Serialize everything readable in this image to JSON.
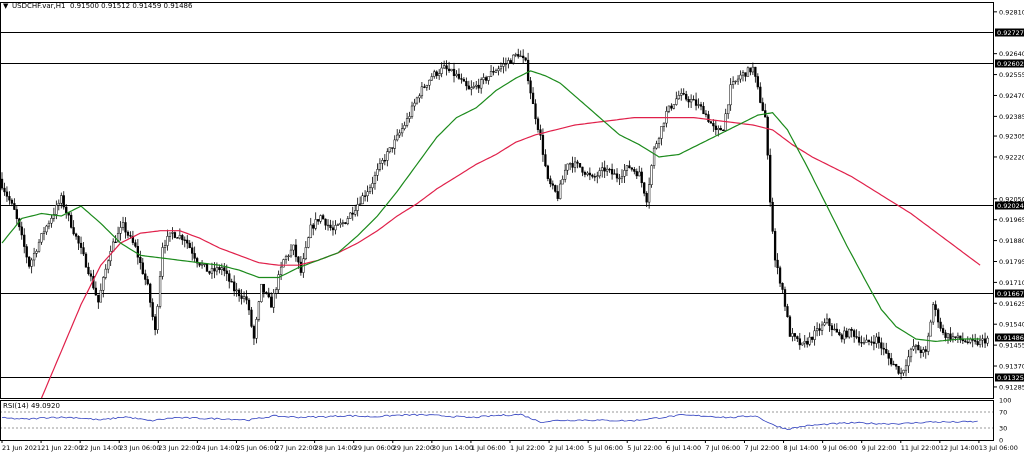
{
  "header": {
    "arrow": "▼",
    "symbol_label": "USDCHF.var,H1",
    "ohlc_label": "0.91500 0.91512 0.91459 0.91486"
  },
  "rsi_label": "RSI(14) 49.0920",
  "colors": {
    "background": "#ffffff",
    "candle": "#000000",
    "ma_fast": "#1b8a1b",
    "ma_slow": "#e0204a",
    "rsi_line": "#2f3fbf",
    "level_tag_bg": "#000000",
    "level_tag_text": "#ffffff"
  },
  "chart_data": [
    {
      "type": "candlestick",
      "title": "USDCHF.var,H1",
      "ylim": [
        0.9124,
        0.9285
      ],
      "y_ticks": [
        "0.92810",
        "0.92640",
        "0.92555",
        "0.92470",
        "0.92385",
        "0.92305",
        "0.92220",
        "0.92050",
        "0.91965",
        "0.91880",
        "0.91795",
        "0.91710",
        "0.91625",
        "0.91540",
        "0.91455",
        "0.91370",
        "0.91285"
      ],
      "x_ticks": [
        "21 Jun 2021",
        "21 Jun 22:00",
        "22 Jun 14:00",
        "23 Jun 06:00",
        "23 Jun 22:00",
        "24 Jun 14:00",
        "25 Jun 06:00",
        "27 Jun 22:00",
        "28 Jun 14:00",
        "29 Jun 06:00",
        "29 Jun 22:00",
        "30 Jun 14:00",
        "1 Jul 06:00",
        "1 Jul 22:00",
        "2 Jul 14:00",
        "5 Jul 06:00",
        "5 Jul 22:00",
        "6 Jul 14:00",
        "7 Jul 06:00",
        "7 Jul 22:00",
        "8 Jul 14:00",
        "9 Jul 06:00",
        "9 Jul 22:00",
        "11 Jul 22:00",
        "12 Jul 14:00",
        "13 Jul 06:00"
      ],
      "horizontal_levels": [
        "0.92727",
        "0.92602",
        "0.92024",
        "0.91667",
        "0.91325"
      ],
      "last_price": "0.91486",
      "price_path": [
        [
          0,
          0.9213
        ],
        [
          6,
          0.92
        ],
        [
          12,
          0.9178
        ],
        [
          18,
          0.9192
        ],
        [
          25,
          0.9205
        ],
        [
          30,
          0.9192
        ],
        [
          36,
          0.9176
        ],
        [
          40,
          0.9163
        ],
        [
          45,
          0.9185
        ],
        [
          50,
          0.9194
        ],
        [
          55,
          0.9185
        ],
        [
          60,
          0.9169
        ],
        [
          63,
          0.9151
        ],
        [
          66,
          0.9186
        ],
        [
          70,
          0.9191
        ],
        [
          75,
          0.9189
        ],
        [
          80,
          0.918
        ],
        [
          85,
          0.9175
        ],
        [
          90,
          0.9177
        ],
        [
          95,
          0.9168
        ],
        [
          100,
          0.9164
        ],
        [
          103,
          0.9148
        ],
        [
          106,
          0.9169
        ],
        [
          110,
          0.9162
        ],
        [
          115,
          0.918
        ],
        [
          119,
          0.9185
        ],
        [
          122,
          0.9175
        ],
        [
          126,
          0.9193
        ],
        [
          130,
          0.9198
        ],
        [
          135,
          0.9192
        ],
        [
          140,
          0.9196
        ],
        [
          145,
          0.9203
        ],
        [
          150,
          0.921
        ],
        [
          155,
          0.922
        ],
        [
          160,
          0.9228
        ],
        [
          165,
          0.9237
        ],
        [
          170,
          0.9248
        ],
        [
          175,
          0.9255
        ],
        [
          180,
          0.9258
        ],
        [
          185,
          0.9255
        ],
        [
          190,
          0.9249
        ],
        [
          195,
          0.9252
        ],
        [
          200,
          0.9257
        ],
        [
          205,
          0.926
        ],
        [
          210,
          0.9264
        ],
        [
          213,
          0.926
        ],
        [
          216,
          0.9243
        ],
        [
          219,
          0.923
        ],
        [
          222,
          0.9212
        ],
        [
          226,
          0.9206
        ],
        [
          230,
          0.922
        ],
        [
          235,
          0.9218
        ],
        [
          240,
          0.9213
        ],
        [
          245,
          0.9217
        ],
        [
          250,
          0.9214
        ],
        [
          255,
          0.9218
        ],
        [
          259,
          0.9215
        ],
        [
          262,
          0.9205
        ],
        [
          265,
          0.9225
        ],
        [
          270,
          0.924
        ],
        [
          275,
          0.9247
        ],
        [
          280,
          0.9245
        ],
        [
          285,
          0.9241
        ],
        [
          290,
          0.9232
        ],
        [
          293,
          0.9234
        ],
        [
          296,
          0.925
        ],
        [
          300,
          0.9255
        ],
        [
          305,
          0.9258
        ],
        [
          308,
          0.9245
        ],
        [
          310,
          0.9238
        ],
        [
          312,
          0.9205
        ],
        [
          314,
          0.918
        ],
        [
          317,
          0.9168
        ],
        [
          320,
          0.915
        ],
        [
          325,
          0.9145
        ],
        [
          330,
          0.915
        ],
        [
          335,
          0.9155
        ],
        [
          340,
          0.9149
        ],
        [
          345,
          0.9151
        ],
        [
          350,
          0.9146
        ],
        [
          355,
          0.9148
        ],
        [
          360,
          0.914
        ],
        [
          365,
          0.9134
        ],
        [
          370,
          0.9145
        ],
        [
          375,
          0.9142
        ],
        [
          378,
          0.9162
        ],
        [
          382,
          0.915
        ],
        [
          388,
          0.9148
        ],
        [
          395,
          0.9146
        ],
        [
          400,
          0.9148
        ]
      ],
      "ma_fast_path": [
        [
          0,
          0.9187
        ],
        [
          8,
          0.9197
        ],
        [
          16,
          0.9199
        ],
        [
          24,
          0.9198
        ],
        [
          32,
          0.9202
        ],
        [
          40,
          0.9195
        ],
        [
          48,
          0.9187
        ],
        [
          56,
          0.9182
        ],
        [
          64,
          0.9181
        ],
        [
          72,
          0.918
        ],
        [
          80,
          0.9179
        ],
        [
          88,
          0.9178
        ],
        [
          96,
          0.9176
        ],
        [
          104,
          0.9173
        ],
        [
          112,
          0.9173
        ],
        [
          120,
          0.9177
        ],
        [
          128,
          0.918
        ],
        [
          136,
          0.9183
        ],
        [
          144,
          0.919
        ],
        [
          152,
          0.9198
        ],
        [
          160,
          0.9208
        ],
        [
          168,
          0.9219
        ],
        [
          176,
          0.923
        ],
        [
          184,
          0.9238
        ],
        [
          192,
          0.9242
        ],
        [
          200,
          0.9249
        ],
        [
          208,
          0.9254
        ],
        [
          214,
          0.9257
        ],
        [
          220,
          0.9255
        ],
        [
          226,
          0.9252
        ],
        [
          234,
          0.9245
        ],
        [
          242,
          0.9238
        ],
        [
          250,
          0.9231
        ],
        [
          258,
          0.9227
        ],
        [
          266,
          0.9222
        ],
        [
          274,
          0.9223
        ],
        [
          282,
          0.9227
        ],
        [
          290,
          0.9231
        ],
        [
          298,
          0.9235
        ],
        [
          306,
          0.9239
        ],
        [
          312,
          0.924
        ],
        [
          318,
          0.9233
        ],
        [
          326,
          0.9218
        ],
        [
          334,
          0.9202
        ],
        [
          342,
          0.9186
        ],
        [
          350,
          0.9171
        ],
        [
          356,
          0.916
        ],
        [
          362,
          0.9153
        ],
        [
          370,
          0.9148
        ],
        [
          378,
          0.9147
        ],
        [
          388,
          0.9148
        ],
        [
          396,
          0.9148
        ]
      ],
      "ma_slow_path": [
        [
          16,
          0.9124
        ],
        [
          24,
          0.9143
        ],
        [
          32,
          0.9162
        ],
        [
          40,
          0.9178
        ],
        [
          48,
          0.9187
        ],
        [
          56,
          0.9191
        ],
        [
          64,
          0.9192
        ],
        [
          72,
          0.9192
        ],
        [
          80,
          0.9189
        ],
        [
          88,
          0.9185
        ],
        [
          96,
          0.9182
        ],
        [
          104,
          0.9179
        ],
        [
          112,
          0.9178
        ],
        [
          120,
          0.9178
        ],
        [
          128,
          0.918
        ],
        [
          136,
          0.9183
        ],
        [
          144,
          0.9187
        ],
        [
          152,
          0.9192
        ],
        [
          160,
          0.9198
        ],
        [
          168,
          0.9203
        ],
        [
          176,
          0.9209
        ],
        [
          184,
          0.9214
        ],
        [
          192,
          0.9219
        ],
        [
          200,
          0.9223
        ],
        [
          208,
          0.9228
        ],
        [
          216,
          0.9231
        ],
        [
          224,
          0.9233
        ],
        [
          232,
          0.9235
        ],
        [
          240,
          0.9236
        ],
        [
          248,
          0.9237
        ],
        [
          256,
          0.9238
        ],
        [
          264,
          0.9238
        ],
        [
          272,
          0.9238
        ],
        [
          280,
          0.9238
        ],
        [
          288,
          0.9237
        ],
        [
          296,
          0.9236
        ],
        [
          304,
          0.9235
        ],
        [
          312,
          0.9233
        ],
        [
          320,
          0.9227
        ],
        [
          328,
          0.9222
        ],
        [
          336,
          0.9218
        ],
        [
          344,
          0.9214
        ],
        [
          352,
          0.9209
        ],
        [
          360,
          0.9204
        ],
        [
          368,
          0.9199
        ],
        [
          376,
          0.9193
        ],
        [
          384,
          0.9187
        ],
        [
          392,
          0.9181
        ],
        [
          396,
          0.9178
        ]
      ]
    },
    {
      "type": "line",
      "title": "RSI(14) 49.0920",
      "ylim": [
        0,
        100
      ],
      "y_ticks": [
        "100",
        "70",
        "30",
        "0"
      ],
      "reference_levels": [
        70,
        30
      ],
      "rsi_path": [
        [
          0,
          55
        ],
        [
          10,
          52
        ],
        [
          20,
          57
        ],
        [
          30,
          56
        ],
        [
          40,
          50
        ],
        [
          50,
          58
        ],
        [
          60,
          48
        ],
        [
          70,
          56
        ],
        [
          80,
          54
        ],
        [
          90,
          53
        ],
        [
          100,
          50
        ],
        [
          110,
          60
        ],
        [
          120,
          57
        ],
        [
          130,
          58
        ],
        [
          140,
          61
        ],
        [
          150,
          58
        ],
        [
          160,
          62
        ],
        [
          170,
          63
        ],
        [
          180,
          60
        ],
        [
          190,
          56
        ],
        [
          200,
          61
        ],
        [
          210,
          64
        ],
        [
          218,
          45
        ],
        [
          225,
          49
        ],
        [
          235,
          50
        ],
        [
          245,
          49
        ],
        [
          255,
          48
        ],
        [
          265,
          55
        ],
        [
          275,
          62
        ],
        [
          285,
          60
        ],
        [
          295,
          56
        ],
        [
          305,
          61
        ],
        [
          312,
          38
        ],
        [
          318,
          27
        ],
        [
          325,
          35
        ],
        [
          335,
          40
        ],
        [
          345,
          43
        ],
        [
          355,
          41
        ],
        [
          365,
          41
        ],
        [
          375,
          45
        ],
        [
          385,
          45
        ],
        [
          395,
          46
        ]
      ]
    }
  ]
}
